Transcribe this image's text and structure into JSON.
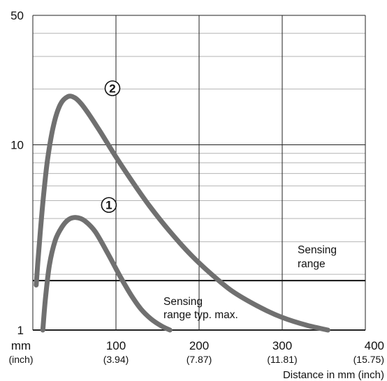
{
  "chart_data": {
    "type": "line",
    "xlabel": "Distance in mm (inch)",
    "xunit_main": "mm",
    "xunit_sub": "(inch)",
    "xlim": [
      0,
      400
    ],
    "ylim": [
      1,
      50
    ],
    "yscale": "log",
    "grid": true,
    "x_ticks": [
      {
        "value": 100,
        "label": "100",
        "sublabel": "(3.94)"
      },
      {
        "value": 200,
        "label": "200",
        "sublabel": "(7.87)"
      },
      {
        "value": 300,
        "label": "300",
        "sublabel": "(11.81)"
      },
      {
        "value": 400,
        "label": "400",
        "sublabel": "(15.75)"
      }
    ],
    "y_ticks": [
      {
        "value": 1,
        "label": "1"
      },
      {
        "value": 10,
        "label": "10"
      },
      {
        "value": 50,
        "label": "50"
      }
    ],
    "series": [
      {
        "name": "①",
        "color": "#707070",
        "x": [
          12,
          15,
          20,
          27,
          35,
          43,
          52,
          62,
          75,
          90,
          105,
          118,
          130,
          142,
          155,
          165
        ],
        "y": [
          1.0,
          1.45,
          2.25,
          3.05,
          3.6,
          3.95,
          4.05,
          3.9,
          3.4,
          2.6,
          1.95,
          1.55,
          1.3,
          1.15,
          1.05,
          1.0
        ]
      },
      {
        "name": "②",
        "color": "#707070",
        "x": [
          4,
          6,
          9,
          13,
          18,
          25,
          33,
          42,
          50,
          58,
          68,
          82,
          100,
          120,
          140,
          165,
          190,
          215,
          240,
          270,
          300,
          330,
          355
        ],
        "y": [
          1.75,
          2.3,
          3.4,
          5.4,
          8.5,
          12.8,
          16.5,
          18.2,
          18.0,
          16.7,
          14.5,
          11.6,
          8.6,
          6.3,
          4.7,
          3.4,
          2.55,
          2.0,
          1.62,
          1.35,
          1.17,
          1.06,
          1.0
        ]
      }
    ],
    "reference_line": {
      "y": 1.85,
      "label_line1": "Sensing",
      "label_line2": "range"
    },
    "annotations": [
      {
        "line1": "Sensing",
        "line2": "range typ. max."
      }
    ]
  }
}
